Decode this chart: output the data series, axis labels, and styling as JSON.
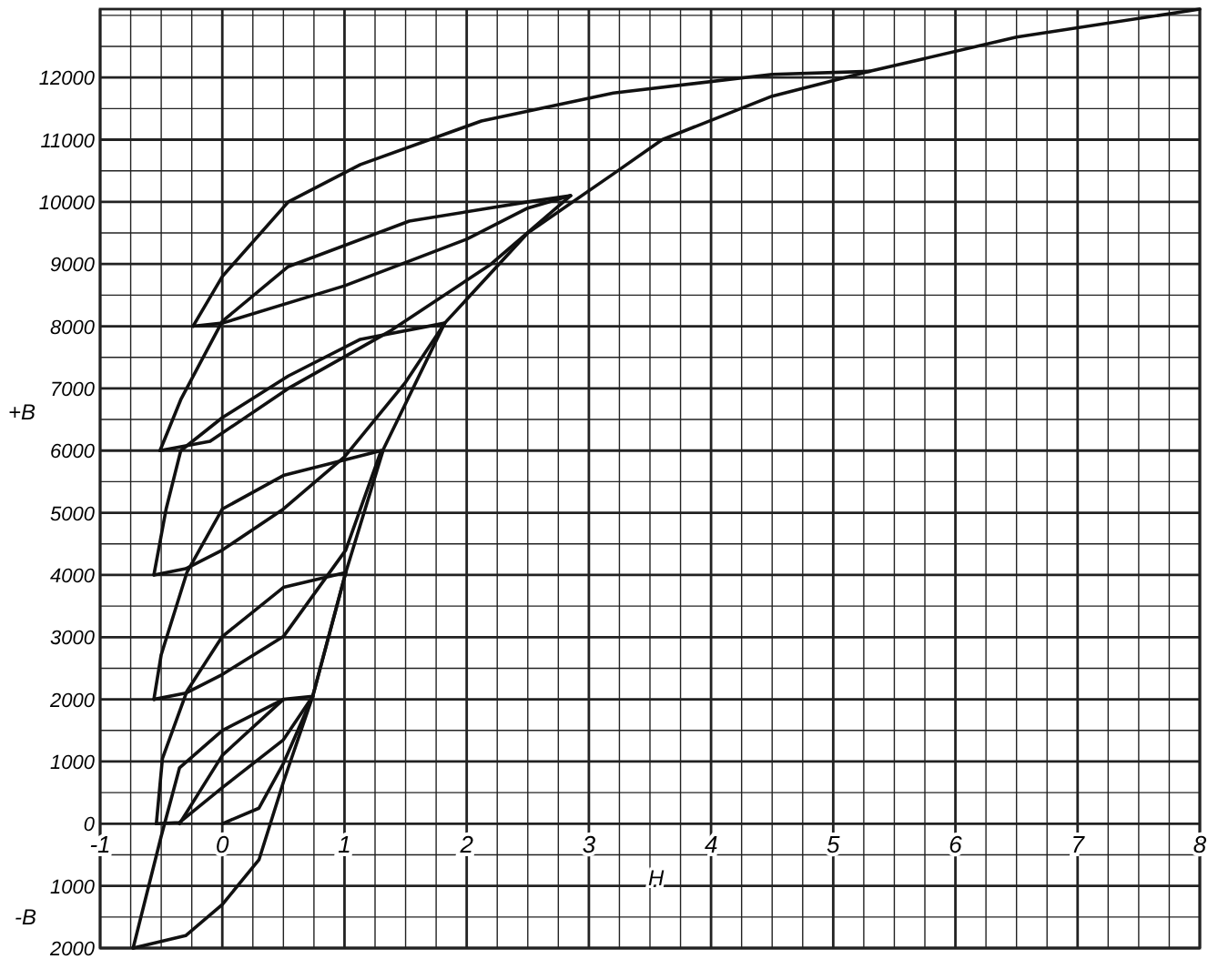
{
  "chart_data": {
    "type": "line",
    "xlabel": "H",
    "ylabel": "+B",
    "annotations": [
      "-B"
    ],
    "xlim": [
      -1,
      8
    ],
    "ylim": [
      -2000,
      13100
    ],
    "xticks": [
      -1,
      0,
      1,
      2,
      3,
      4,
      5,
      6,
      7,
      8
    ],
    "yticks": [
      {
        "value": -2000,
        "label": "2000"
      },
      {
        "value": -1000,
        "label": "1000"
      },
      0,
      1000,
      2000,
      3000,
      4000,
      5000,
      6000,
      7000,
      8000,
      9000,
      10000,
      11000,
      12000
    ],
    "grid": true,
    "marker": "none",
    "line_style": "solid",
    "series": [
      {
        "color": "#111111",
        "x": [
          0,
          0.3,
          0.5,
          0.74,
          1.01,
          1.32,
          1.82,
          2.5,
          3.2,
          3.6,
          4.5,
          5.3,
          6.5,
          8
        ],
        "values": [
          0,
          250,
          970,
          2050,
          4040,
          6030,
          8050,
          9500,
          10450,
          11000,
          11700,
          12100,
          12650,
          13100
        ]
      },
      {
        "color": "#111111",
        "x": [
          -0.24,
          0,
          0.54,
          1.13,
          2.12,
          3.2,
          4.5,
          5.3
        ],
        "values": [
          8000,
          8800,
          10000,
          10600,
          11300,
          11750,
          12050,
          12100
        ]
      },
      {
        "color": "#111111",
        "x": [
          -0.24,
          0,
          1,
          2,
          2.5,
          2.85
        ],
        "values": [
          8000,
          8050,
          8650,
          9400,
          9900,
          10100
        ]
      },
      {
        "color": "#111111",
        "x": [
          -0.51,
          -0.34,
          0,
          0.54,
          1.53,
          2.5,
          2.85
        ],
        "values": [
          6000,
          6820,
          8080,
          8960,
          9690,
          10000,
          10100
        ]
      },
      {
        "color": "#111111",
        "x": [
          -0.51,
          -0.1,
          0.54,
          1.38,
          2.2,
          2.85
        ],
        "values": [
          6000,
          6150,
          7000,
          7930,
          9000,
          10100
        ]
      },
      {
        "color": "#111111",
        "x": [
          -0.56,
          -0.46,
          -0.34,
          0,
          0.54,
          1.13,
          1.82
        ],
        "values": [
          4000,
          5060,
          6000,
          6530,
          7200,
          7790,
          8050
        ]
      },
      {
        "color": "#111111",
        "x": [
          -0.56,
          -0.3,
          0,
          0.5,
          1.0,
          1.5,
          1.82
        ],
        "values": [
          4000,
          4100,
          4400,
          5060,
          5900,
          7100,
          8050
        ]
      },
      {
        "color": "#111111",
        "x": [
          -0.56,
          -0.5,
          -0.29,
          0,
          0.5,
          1.3
        ],
        "values": [
          2000,
          2720,
          4040,
          5060,
          5600,
          6000
        ]
      },
      {
        "color": "#111111",
        "x": [
          -0.56,
          -0.3,
          0,
          0.5,
          1.01,
          1.3
        ],
        "values": [
          2000,
          2100,
          2400,
          3010,
          4400,
          6000
        ]
      },
      {
        "color": "#111111",
        "x": [
          -0.54,
          -0.49,
          -0.29,
          0,
          0.5,
          1.01
        ],
        "values": [
          0,
          1050,
          2130,
          3010,
          3800,
          4040
        ]
      },
      {
        "color": "#111111",
        "x": [
          -0.54,
          -0.35,
          0,
          0.5,
          0.74,
          1.01
        ],
        "values": [
          0,
          20,
          580,
          1350,
          2050,
          4040
        ]
      },
      {
        "color": "#111111",
        "x": [
          -0.73,
          -0.5,
          -0.35,
          0,
          0.5,
          0.74
        ],
        "values": [
          -2000,
          -200,
          900,
          1500,
          2000,
          2050
        ]
      },
      {
        "color": "#111111",
        "x": [
          -0.73,
          -0.3,
          0,
          0.3,
          0.5,
          0.74
        ],
        "values": [
          -2000,
          -1800,
          -1300,
          -580,
          670,
          2050
        ]
      },
      {
        "color": "#111111",
        "x": [
          -0.35,
          0,
          0.5
        ],
        "values": [
          0,
          1100,
          2000
        ]
      }
    ]
  }
}
